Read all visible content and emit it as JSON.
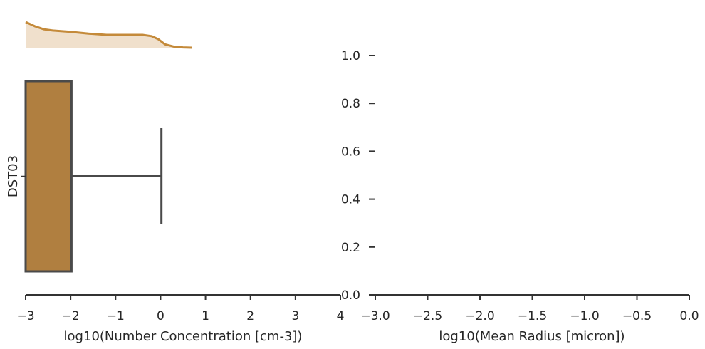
{
  "chart_data": [
    {
      "type": "box",
      "orientation": "horizontal",
      "xlabel": "log10(Number Concentration [cm-3])",
      "ylabel": "",
      "xlim": [
        -3,
        4
      ],
      "x_ticks": [
        -3,
        -2,
        -1,
        0,
        1,
        2,
        3,
        4
      ],
      "x_tick_labels": [
        "−3",
        "−2",
        "−1",
        "0",
        "1",
        "2",
        "3",
        "4"
      ],
      "categories": [
        "DST03"
      ],
      "box": {
        "category": "DST03",
        "whisker_low": -3,
        "q1": -3,
        "median": -3,
        "q3": -1.98,
        "whisker_high": 0.02
      },
      "colors": {
        "box_fill": "#b07f40",
        "box_edge": "#4a4a4a",
        "kde_line": "#c48a3a",
        "kde_fill": "#f0e0cc"
      },
      "marginal_kde": {
        "x": [
          -3.0,
          -2.8,
          -2.6,
          -2.4,
          -2.0,
          -1.6,
          -1.2,
          -0.8,
          -0.4,
          -0.2,
          -0.05,
          0.1,
          0.3,
          0.5,
          0.7
        ],
        "density": [
          1.0,
          0.84,
          0.72,
          0.67,
          0.62,
          0.55,
          0.5,
          0.5,
          0.5,
          0.45,
          0.33,
          0.13,
          0.04,
          0.01,
          0.0
        ]
      }
    },
    {
      "type": "scatter",
      "xlabel": "log10(Mean Radius [micron])",
      "ylabel": "",
      "xlim": [
        -3.0,
        0.0
      ],
      "ylim": [
        0.0,
        1.0
      ],
      "x_ticks": [
        -3.0,
        -2.5,
        -2.0,
        -1.5,
        -1.0,
        -0.5,
        0.0
      ],
      "x_tick_labels": [
        "−3.0",
        "−2.5",
        "−2.0",
        "−1.5",
        "−1.0",
        "−0.5",
        "0.0"
      ],
      "y_ticks": [
        0.0,
        0.2,
        0.4,
        0.6,
        0.8,
        1.0
      ],
      "y_tick_labels": [
        "0.0",
        "0.2",
        "0.4",
        "0.6",
        "0.8",
        "1.0"
      ],
      "series": []
    }
  ]
}
